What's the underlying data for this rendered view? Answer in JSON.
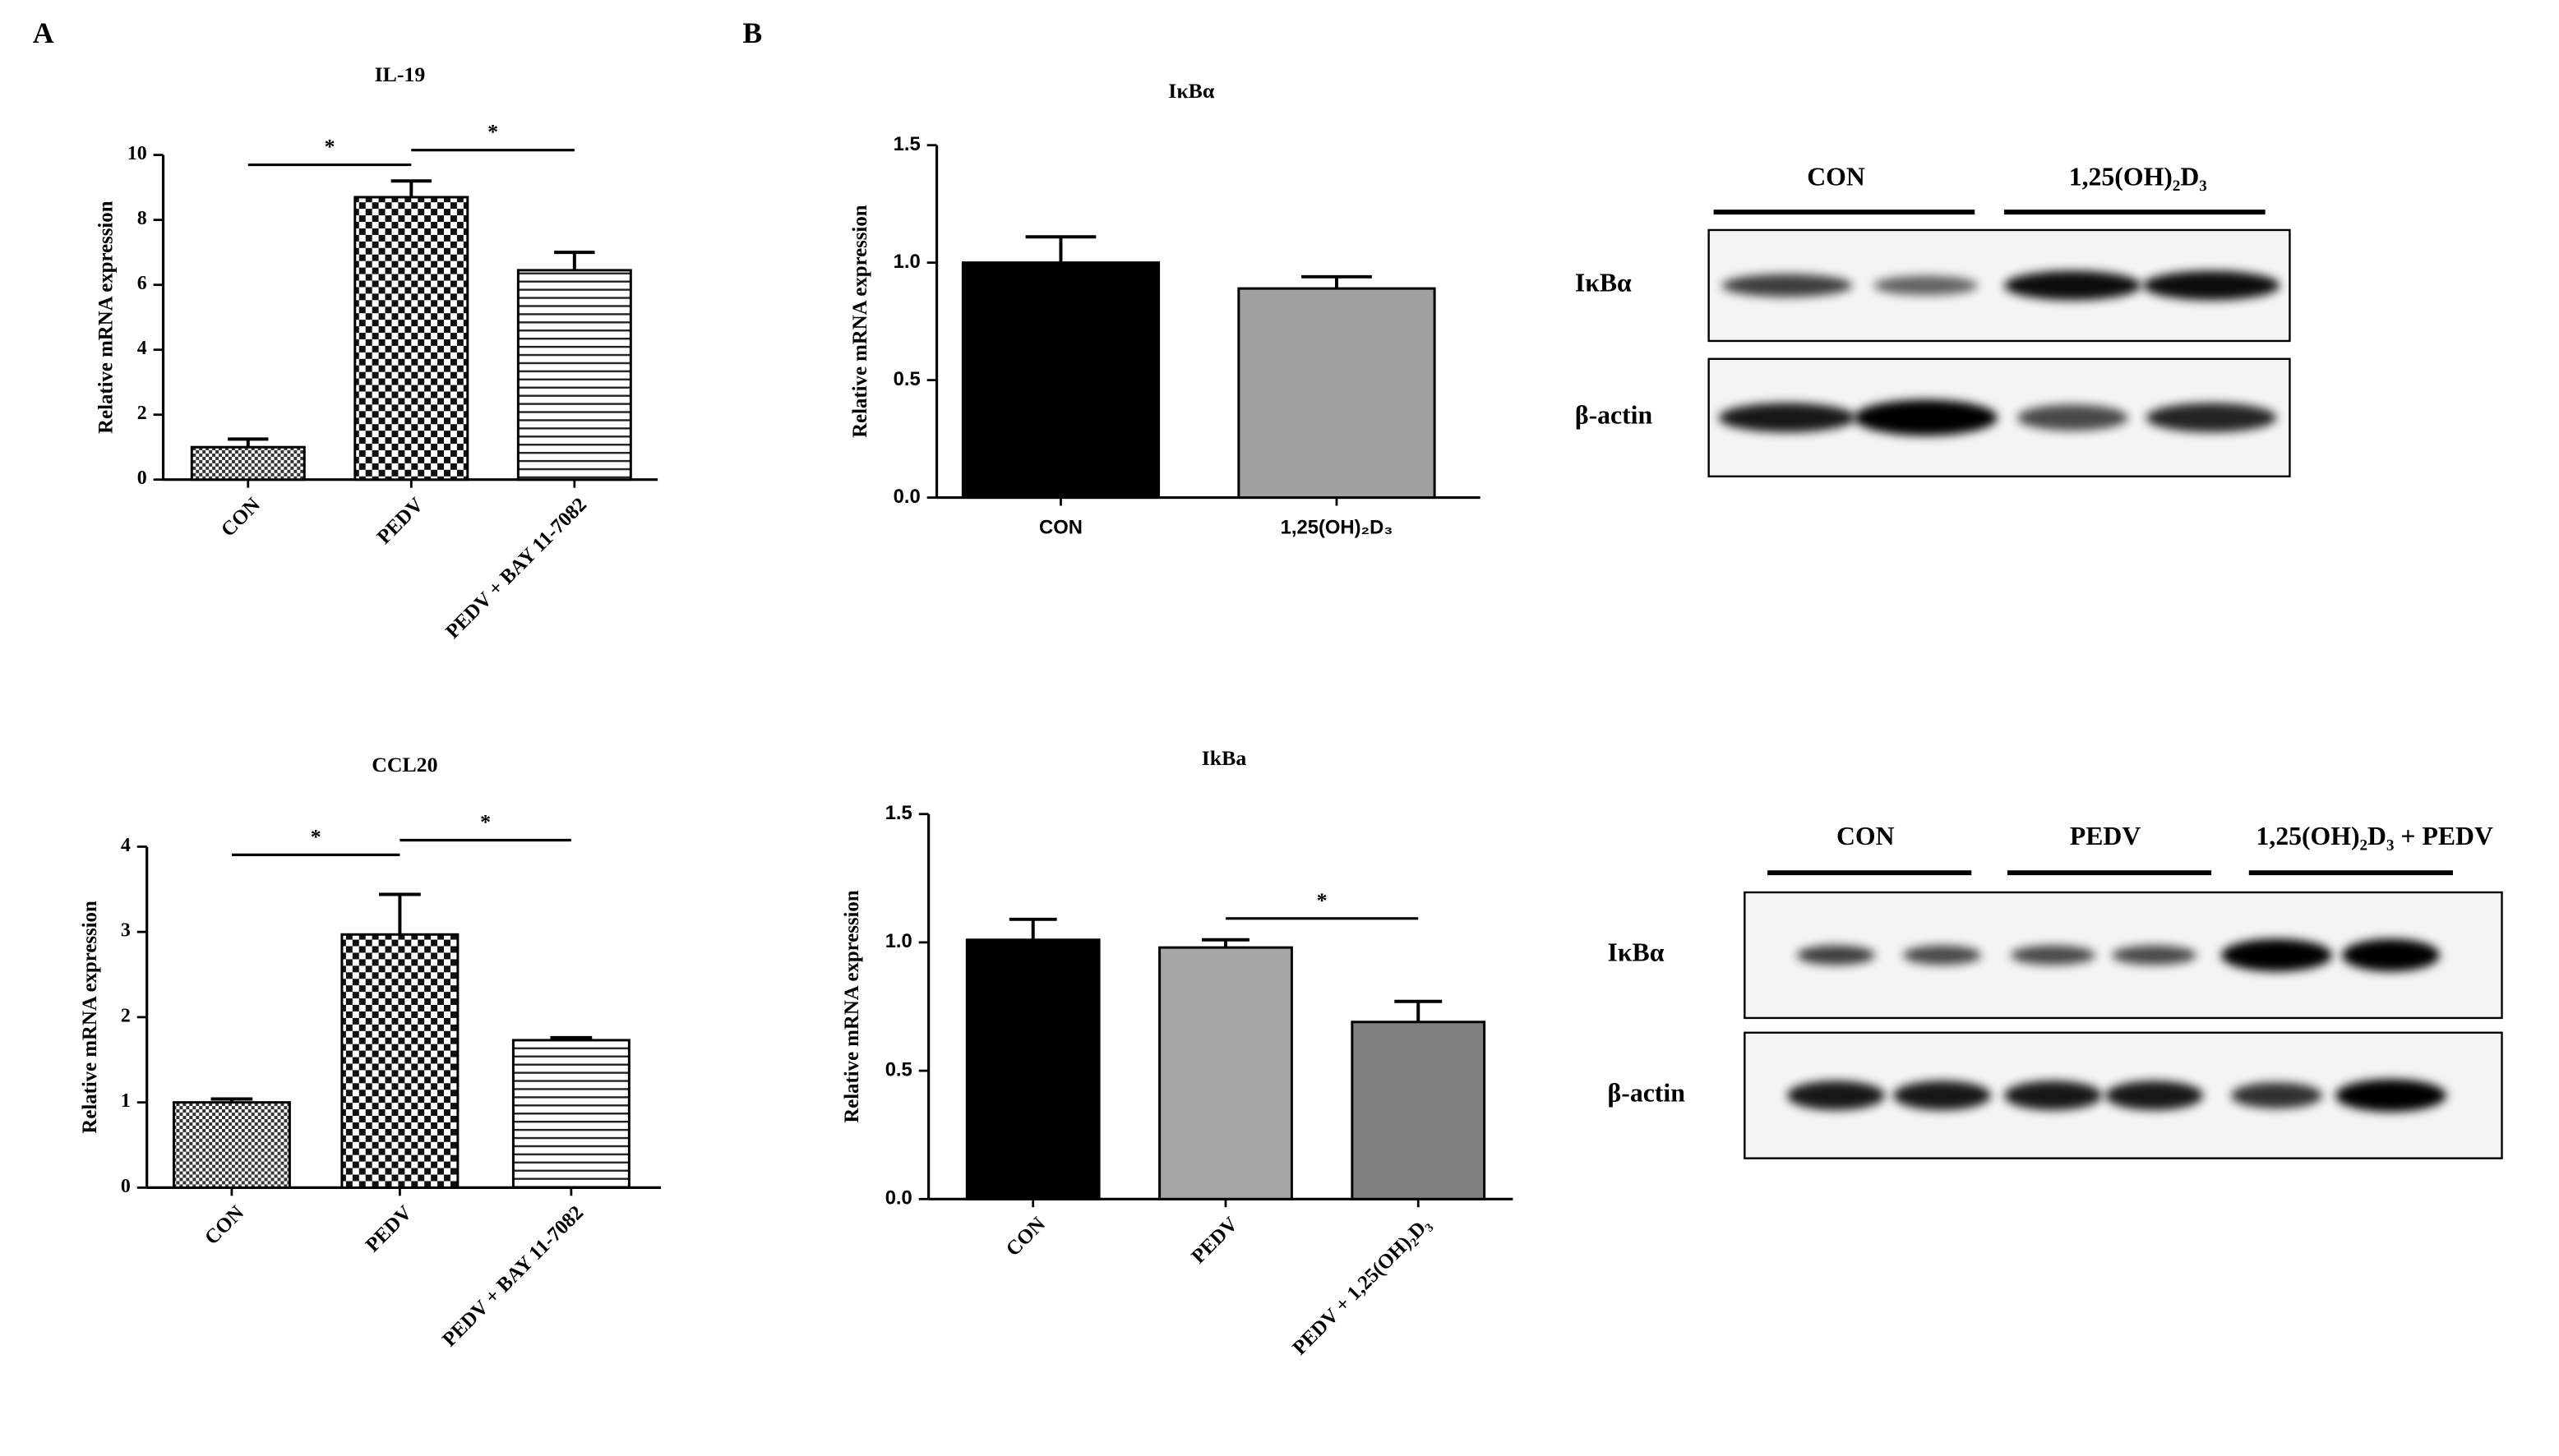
{
  "panels": [
    "A",
    "B"
  ],
  "chart_data": [
    {
      "type": "bar",
      "title": "IL-19",
      "y_label": "Relative mRNA expression",
      "categories": [
        "CON",
        "PEDV",
        "PEDV + BAY 11-7082"
      ],
      "values": [
        1.0,
        8.7,
        6.45
      ],
      "errors": [
        0.25,
        0.5,
        0.55
      ],
      "patterns": [
        "dense-checker",
        "checker",
        "horizontal-lines"
      ],
      "ylim": [
        0,
        10
      ],
      "yticks": [
        0,
        2,
        4,
        6,
        8,
        10
      ],
      "significance": [
        {
          "text": "*",
          "pair": [
            0,
            1
          ]
        },
        {
          "text": "*",
          "pair": [
            1,
            2
          ]
        }
      ]
    },
    {
      "type": "bar",
      "title": "CCL20",
      "y_label": "Relative mRNA expression",
      "categories": [
        "CON",
        "PEDV",
        "PEDV + BAY 11-7082"
      ],
      "values": [
        1.0,
        2.97,
        1.73
      ],
      "errors": [
        0.04,
        0.47,
        0.03
      ],
      "patterns": [
        "dense-checker",
        "checker",
        "horizontal-lines"
      ],
      "ylim": [
        0,
        4
      ],
      "yticks": [
        0,
        1,
        2,
        3,
        4
      ],
      "significance": [
        {
          "text": "*",
          "pair": [
            0,
            1
          ]
        },
        {
          "text": "*",
          "pair": [
            1,
            2
          ]
        }
      ]
    },
    {
      "type": "bar",
      "title": "IκBα",
      "y_label": "Relative mRNA expression",
      "categories": [
        "CON",
        "1,25(OH)₂D₃"
      ],
      "values": [
        1.0,
        0.89
      ],
      "errors": [
        0.11,
        0.05
      ],
      "colors": [
        "#000000",
        "#a0a0a0"
      ],
      "ylim": [
        0,
        1.5
      ],
      "yticks": [
        {
          "value": 0,
          "label": "0.0"
        },
        {
          "value": 0.5,
          "label": "0.5"
        },
        {
          "value": 1,
          "label": "1.0"
        },
        {
          "value": 1.5,
          "label": "1.5"
        }
      ]
    },
    {
      "type": "bar",
      "title": "IkBa",
      "y_label": "Relative mRNA expression",
      "categories": [
        "CON",
        "PEDV",
        "PEDV + 1,25(OH)₂D₃"
      ],
      "values": [
        1.01,
        0.98,
        0.69
      ],
      "errors": [
        0.08,
        0.03,
        0.08
      ],
      "colors": [
        "#000000",
        "#a6a6a6",
        "#808080"
      ],
      "ylim": [
        0,
        1.5
      ],
      "yticks": [
        {
          "value": 0,
          "label": "0.0"
        },
        {
          "value": 0.5,
          "label": "0.5"
        },
        {
          "value": 1,
          "label": "1.0"
        },
        {
          "value": 1.5,
          "label": "1.5"
        }
      ],
      "significance": [
        {
          "text": "*",
          "pair": [
            1,
            2
          ]
        }
      ]
    }
  ],
  "blots": [
    {
      "groups": [
        "CON",
        "1,25(OH)₂D₃"
      ],
      "rows": [
        "IκBα",
        "β-actin"
      ]
    },
    {
      "groups": [
        "CON",
        "PEDV",
        "1,25(OH)₂D₃ + PEDV"
      ],
      "rows": [
        "IκBα",
        "β-actin"
      ]
    }
  ]
}
